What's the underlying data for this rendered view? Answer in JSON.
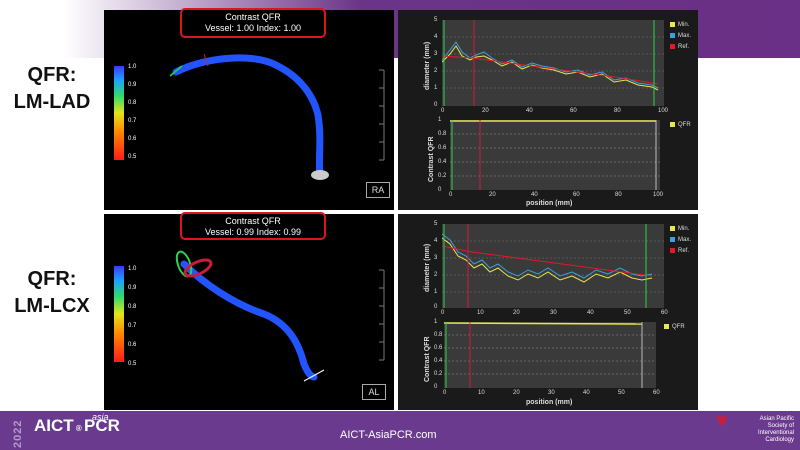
{
  "slide": {
    "label_top": [
      "QFR:",
      "LM-LAD"
    ],
    "label_bottom": [
      "QFR:",
      "LM-LCX"
    ]
  },
  "top_panel": {
    "qfr_title": "Contrast QFR",
    "qfr_values": "Vessel: 1.00   Index: 1.00",
    "colorbar_ticks": [
      "1.0",
      "0.9",
      "0.8",
      "0.7",
      "0.6",
      "0.5"
    ],
    "orientation": "RA"
  },
  "bottom_panel": {
    "qfr_title": "Contrast QFR",
    "qfr_values": "Vessel: 0.99   Index: 0.99",
    "colorbar_ticks": [
      "1.0",
      "0.9",
      "0.8",
      "0.7",
      "0.6",
      "0.5"
    ],
    "orientation": "AL"
  },
  "graphs": {
    "legend_min": "Min.",
    "legend_max": "Max.",
    "legend_ref": "Ref.",
    "legend_qfr": "QFR",
    "y_label_diameter": "diameter (mm)",
    "y_label_qfr": "Contrast QFR",
    "x_label": "position (mm)",
    "top_diam_yticks": [
      "5",
      "4",
      "3",
      "2",
      "1",
      "0"
    ],
    "top_diam_xticks": [
      "0",
      "20",
      "40",
      "60",
      "80",
      "100"
    ],
    "top_qfr_yticks": [
      "1",
      "0.8",
      "0.6",
      "0.4",
      "0.2",
      "0"
    ],
    "top_qfr_xticks": [
      "0",
      "20",
      "40",
      "60",
      "80",
      "100"
    ],
    "bottom_diam_yticks": [
      "5",
      "4",
      "3",
      "2",
      "1",
      "0"
    ],
    "bottom_diam_xticks": [
      "0",
      "10",
      "20",
      "30",
      "40",
      "50",
      "60"
    ],
    "bottom_qfr_yticks": [
      "1",
      "0.8",
      "0.6",
      "0.4",
      "0.2",
      "0"
    ],
    "bottom_qfr_xticks": [
      "0",
      "10",
      "20",
      "30",
      "40",
      "50",
      "60"
    ],
    "colors": {
      "min": "#e8e84a",
      "max": "#3aa0e0",
      "ref": "#e01a2a",
      "qfr": "#e8e84a",
      "marker_green": "#2bd14a",
      "marker_red": "#d01a3a"
    }
  },
  "footer": {
    "year": "2022",
    "logo_main": "AICT",
    "logo_pcr": "PCR",
    "logo_asia": "asia",
    "url": "AICT-AsiaPCR.com",
    "apsic_lines": [
      "Asian Pacific",
      "Society of",
      "Interventional",
      "Cardiology"
    ]
  }
}
